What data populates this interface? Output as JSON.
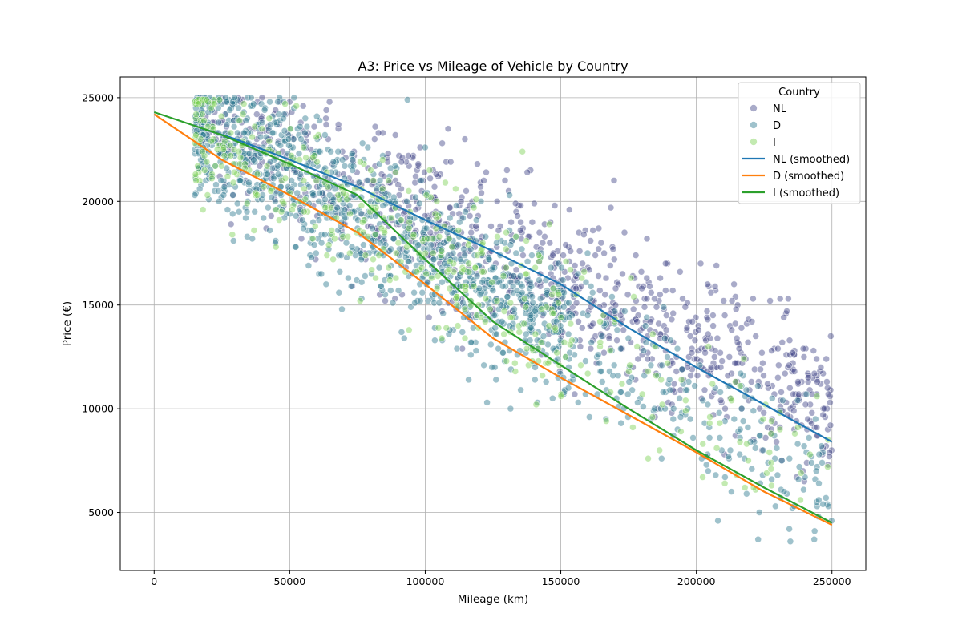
{
  "chart_data": {
    "type": "scatter",
    "title": "A3: Price vs Mileage of Vehicle by Country",
    "xlabel": "Mileage (km)",
    "ylabel": "Price (€)",
    "xlim": [
      -12500,
      262500
    ],
    "ylim": [
      2200,
      26000
    ],
    "xticks": [
      0,
      50000,
      100000,
      150000,
      200000,
      250000
    ],
    "yticks": [
      5000,
      10000,
      15000,
      20000,
      25000
    ],
    "grid": true,
    "legend": {
      "title": "Country",
      "position": "top-right"
    },
    "scatter_series": [
      {
        "name": "NL",
        "color": "#414487",
        "density": 1.0,
        "slope": 0.06,
        "spread": 3200
      },
      {
        "name": "D",
        "color": "#2a788e",
        "density": 1.0,
        "slope": 0.075,
        "spread": 3300
      },
      {
        "name": "I",
        "color": "#7ad151",
        "density": 0.35,
        "slope": 0.075,
        "spread": 3200
      }
    ],
    "smoothed_series": [
      {
        "name": "NL (smoothed)",
        "color": "#1f77b4",
        "x": [
          18000,
          30000,
          50000,
          75000,
          100000,
          125000,
          150000,
          175000,
          200000,
          225000,
          250000
        ],
        "y": [
          23500,
          23000,
          22000,
          20700,
          19100,
          17600,
          16000,
          13900,
          12000,
          10200,
          8400
        ]
      },
      {
        "name": "D (smoothed)",
        "color": "#ff7f0e",
        "x": [
          0,
          25000,
          50000,
          75000,
          100000,
          125000,
          150000,
          175000,
          200000,
          225000,
          250000
        ],
        "y": [
          24200,
          22000,
          20300,
          18500,
          16000,
          13400,
          11500,
          9700,
          7900,
          6000,
          4400
        ]
      },
      {
        "name": "I (smoothed)",
        "color": "#2ca02c",
        "x": [
          0,
          25000,
          50000,
          75000,
          100000,
          125000,
          150000,
          175000,
          200000,
          225000,
          250000
        ],
        "y": [
          24300,
          23200,
          21800,
          20300,
          17200,
          14200,
          12100,
          10000,
          8000,
          6200,
          4500
        ]
      }
    ]
  }
}
